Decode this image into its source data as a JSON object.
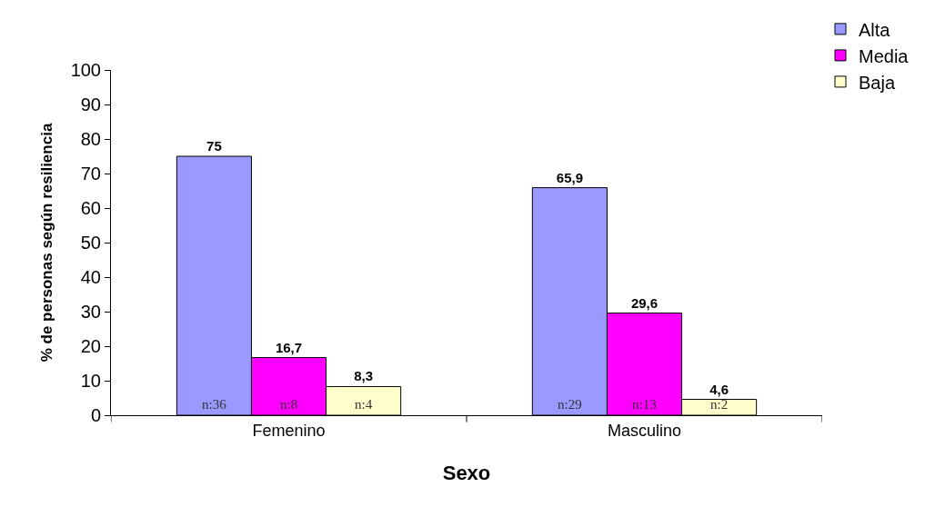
{
  "chart_data": {
    "type": "bar",
    "xlabel": "Sexo",
    "ylabel": "% de personas según resiliencia",
    "categories": [
      "Femenino",
      "Masculino"
    ],
    "series": [
      {
        "name": "Alta",
        "color": "#9999ff",
        "values": [
          75,
          65.9
        ],
        "value_labels": [
          "75",
          "65,9"
        ]
      },
      {
        "name": "Media",
        "color": "#ff00ff",
        "values": [
          16.7,
          29.6
        ],
        "value_labels": [
          "16,7",
          "29,6"
        ]
      },
      {
        "name": "Baja",
        "color": "#ffffcc",
        "values": [
          8.3,
          4.6
        ],
        "value_labels": [
          "8,3",
          "4,6"
        ]
      }
    ],
    "annotations": [
      "n:36",
      "n:8",
      "n:4",
      "n:29",
      "n:13",
      "n:2"
    ],
    "ylim": [
      0,
      100
    ],
    "yticks": [
      0,
      10,
      20,
      30,
      40,
      50,
      60,
      70,
      80,
      90,
      100
    ],
    "legend": "top right"
  }
}
